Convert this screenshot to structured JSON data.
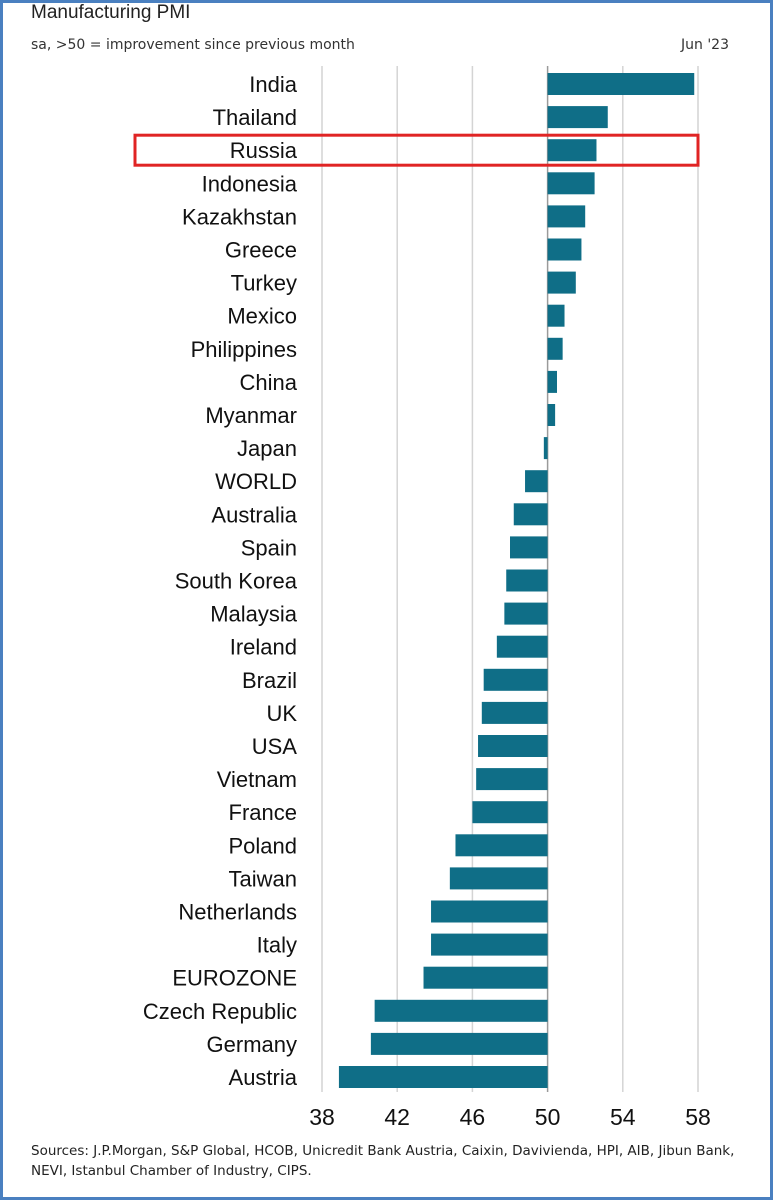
{
  "header": {
    "title": "Manufacturing PMI",
    "subtitle": "sa, >50 = improvement since previous month",
    "date": "Jun '23"
  },
  "footer": {
    "source": "Sources: J.P.Morgan, S&P Global, HCOB, Unicredit Bank Austria, Caixin, Davivienda, HPI, AIB, Jibun Bank, NEVI, Istanbul Chamber of Industry, CIPS."
  },
  "chart_data": {
    "type": "bar",
    "orientation": "horizontal",
    "baseline": 50,
    "xlim": [
      38,
      58
    ],
    "xticks": [
      38,
      42,
      46,
      50,
      54,
      58
    ],
    "grid": "vertical",
    "bar_color": "#0f6e87",
    "highlight": {
      "category": "Russia",
      "color": "#e02424"
    },
    "categories": [
      "India",
      "Thailand",
      "Russia",
      "Indonesia",
      "Kazakhstan",
      "Greece",
      "Turkey",
      "Mexico",
      "Philippines",
      "China",
      "Myanmar",
      "Japan",
      "WORLD",
      "Australia",
      "Spain",
      "South Korea",
      "Malaysia",
      "Ireland",
      "Brazil",
      "UK",
      "USA",
      "Vietnam",
      "France",
      "Poland",
      "Taiwan",
      "Netherlands",
      "Italy",
      "EUROZONE",
      "Czech Republic",
      "Germany",
      "Austria"
    ],
    "values": [
      57.8,
      53.2,
      52.6,
      52.5,
      52.0,
      51.8,
      51.5,
      50.9,
      50.8,
      50.5,
      50.4,
      49.8,
      48.8,
      48.2,
      48.0,
      47.8,
      47.7,
      47.3,
      46.6,
      46.5,
      46.3,
      46.2,
      46.0,
      45.1,
      44.8,
      43.8,
      43.8,
      43.4,
      40.8,
      40.6,
      38.9
    ]
  }
}
